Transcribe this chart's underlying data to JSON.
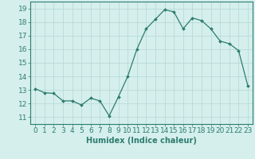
{
  "x": [
    0,
    1,
    2,
    3,
    4,
    5,
    6,
    7,
    8,
    9,
    10,
    11,
    12,
    13,
    14,
    15,
    16,
    17,
    18,
    19,
    20,
    21,
    22,
    23
  ],
  "y": [
    13.1,
    12.8,
    12.75,
    12.2,
    12.2,
    11.9,
    12.4,
    12.2,
    11.1,
    12.5,
    14.0,
    16.0,
    17.5,
    18.2,
    18.9,
    18.75,
    17.5,
    18.3,
    18.1,
    17.5,
    16.6,
    16.4,
    15.9,
    13.3
  ],
  "xlabel": "Humidex (Indice chaleur)",
  "line_color": "#2e7d6e",
  "marker_color": "#2e7d6e",
  "bg_color": "#d5efed",
  "grid_color": "#b8dbd8",
  "xlim": [
    -0.5,
    23.5
  ],
  "ylim": [
    10.5,
    19.5
  ],
  "yticks": [
    11,
    12,
    13,
    14,
    15,
    16,
    17,
    18,
    19
  ],
  "xticks": [
    0,
    1,
    2,
    3,
    4,
    5,
    6,
    7,
    8,
    9,
    10,
    11,
    12,
    13,
    14,
    15,
    16,
    17,
    18,
    19,
    20,
    21,
    22,
    23
  ],
  "tick_color": "#2e7d6e",
  "label_fontsize": 7,
  "tick_fontsize": 6.5
}
